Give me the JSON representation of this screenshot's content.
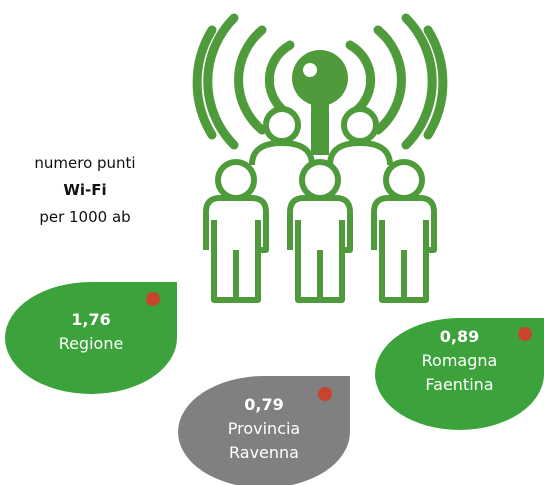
{
  "legend": {
    "lines": [
      "numero punti",
      "Wi-Fi",
      "per 1000 ab"
    ]
  },
  "items": [
    {
      "value": "1,76",
      "name": [
        "Regione"
      ]
    },
    {
      "value": "0,79",
      "name": [
        "Provincia",
        "Ravenna"
      ]
    },
    {
      "value": "0,89",
      "name": [
        "Romagna",
        "Faentina"
      ]
    }
  ]
}
